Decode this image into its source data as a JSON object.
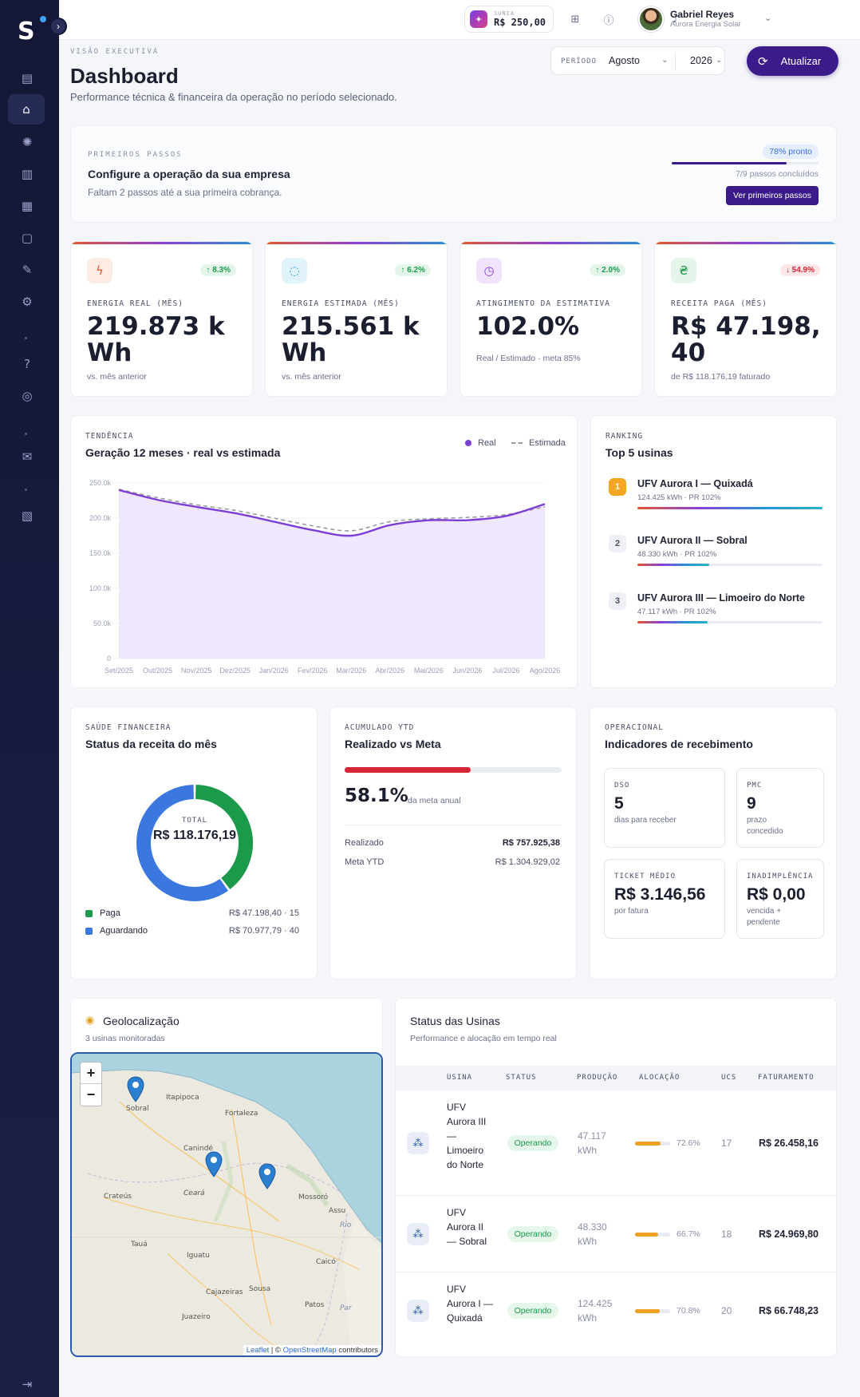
{
  "app": {
    "logo_letter": "S"
  },
  "sidebar": {
    "icons": [
      "receipt-icon",
      "home-icon",
      "sun-icon",
      "invoice-icon",
      "solar-panel-icon",
      "clipboard-icon",
      "edit-icon",
      "gear-icon",
      "help-icon",
      "support-icon",
      "mail-icon",
      "billing-icon",
      "logout-icon"
    ]
  },
  "topbar": {
    "wallet_label": "SUNIA",
    "wallet_value": "R$ 250,00",
    "user_name": "Gabriel Reyes",
    "user_company": "Aurora Energia Solar"
  },
  "header": {
    "pretitle": "VISÃO EXECUTIVA",
    "title": "Dashboard",
    "subtitle": "Performance técnica & financeira da operação no período selecionado.",
    "period_label": "PERÍODO",
    "month": "Agosto",
    "year": "2026",
    "refresh_label": "Atualizar"
  },
  "onboarding": {
    "pretitle": "PRIMEIROS PASSOS",
    "title": "Configure a operação da sua empresa",
    "subtitle": "Faltam 2 passos até a sua primeira cobrança.",
    "badge": "78% pronto",
    "progress": 0.78,
    "steps_text": "7/9 passos concluídos",
    "button": "Ver primeiros passos"
  },
  "kpis": [
    {
      "label": "ENERGIA REAL (MÊS)",
      "value": "219.873 kWh",
      "delta": "↑ 8.3%",
      "sub": "vs. mês anterior",
      "icon": "bolt-icon",
      "trend": "up"
    },
    {
      "label": "ENERGIA ESTIMADA (MÊS)",
      "value": "215.561 kWh",
      "delta": "↑ 6.2%",
      "sub": "vs. mês anterior",
      "icon": "refresh-icon",
      "trend": "up"
    },
    {
      "label": "ATINGIMENTO DA ESTIMATIVA",
      "value": "102.0%",
      "delta": "↑ 2.0%",
      "sub": "Real / Estimado · meta 85%",
      "icon": "clock-icon",
      "trend": "up"
    },
    {
      "label": "RECEITA PAGA (MÊS)",
      "value": "R$ 47.198,40",
      "delta": "↓ 54.9%",
      "sub": "de R$ 118.176,19 faturado",
      "icon": "currency-icon",
      "trend": "down"
    }
  ],
  "trend": {
    "pretitle": "TENDÊNCIA",
    "title": "Geração 12 meses · real vs estimada",
    "legend_real": "Real",
    "legend_est": "Estimada"
  },
  "chart_data": {
    "type": "area",
    "categories": [
      "Set/2025",
      "Out/2025",
      "Nov/2025",
      "Dez/2025",
      "Jan/2026",
      "Fev/2026",
      "Mar/2026",
      "Abr/2026",
      "Mai/2026",
      "Jun/2026",
      "Jul/2026",
      "Ago/2026"
    ],
    "series": [
      {
        "name": "Real",
        "values": [
          240000,
          226000,
          216000,
          207000,
          195000,
          183000,
          175000,
          190000,
          197000,
          197000,
          203000,
          220000
        ]
      },
      {
        "name": "Estimada",
        "values": [
          241000,
          229000,
          219000,
          211000,
          200000,
          189000,
          182000,
          195000,
          199000,
          201000,
          205000,
          216000
        ]
      }
    ],
    "yticks": [
      "250.0k",
      "200.0k",
      "150.0k",
      "100.0k",
      "50.0k",
      "0"
    ],
    "ylim": [
      0,
      250000
    ],
    "grid": true
  },
  "ranking": {
    "pretitle": "RANKING",
    "title": "Top 5 usinas",
    "items": [
      {
        "rank": "1",
        "name": "UFV Aurora I — Quixadá",
        "sub": "124.425 kWh · PR 102%",
        "share": 1.0
      },
      {
        "rank": "2",
        "name": "UFV Aurora II — Sobral",
        "sub": "48.330 kWh · PR 102%",
        "share": 0.39
      },
      {
        "rank": "3",
        "name": "UFV Aurora III — Limoeiro do Norte",
        "sub": "47.117 kWh · PR 102%",
        "share": 0.38
      }
    ]
  },
  "finance": {
    "pretitle": "SAÚDE FINANCEIRA",
    "title": "Status da receita do mês",
    "total_label": "TOTAL",
    "total_value": "R$ 118.176,19",
    "slices": [
      {
        "name": "Paga",
        "value": 47198.4,
        "display": "R$ 47.198,40 · 15",
        "color": "#1a9a4a"
      },
      {
        "name": "Aguardando",
        "value": 70977.79,
        "display": "R$ 70.977,79 · 40",
        "color": "#3a78e0"
      }
    ]
  },
  "ytd": {
    "pretitle": "ACUMULADO YTD",
    "title": "Realizado vs Meta",
    "progress": 0.581,
    "pct": "58.1%",
    "pct_label": "da meta anual",
    "realizado_label": "Realizado",
    "realizado_value": "R$ 757.925,38",
    "meta_label": "Meta YTD",
    "meta_value": "R$ 1.304.929,02"
  },
  "ops": {
    "pretitle": "OPERACIONAL",
    "title": "Indicadores de recebimento",
    "cards": [
      {
        "label": "DSO",
        "value": "5",
        "sub": "dias para receber"
      },
      {
        "label": "PMC",
        "value": "9",
        "sub": "prazo concedido"
      },
      {
        "label": "TICKET MÉDIO",
        "value": "R$ 3.146,56",
        "sub": "por fatura"
      },
      {
        "label": "INADIMPLÊNCIA",
        "value": "R$ 0,00",
        "sub": "vencida + pendente"
      }
    ]
  },
  "geo": {
    "title": "Geolocalização",
    "subtitle": "3 usinas monitoradas",
    "cities": [
      "Sobral",
      "Itapipoca",
      "Fortaleza",
      "Canindé",
      "Crateús",
      "Ceará",
      "Mossoró",
      "Assu",
      "Tauá",
      "Iguatu",
      "Caicó",
      "Cajazeiras",
      "Sousa",
      "Patos",
      "Juazeiro",
      "Rio",
      "Par"
    ],
    "attribution_leaflet": "Leaflet",
    "attribution_osm": "OpenStreetMap",
    "attribution_rest": "contributors",
    "zoom_in": "+",
    "zoom_out": "−"
  },
  "usinas": {
    "title": "Status das Usinas",
    "subtitle": "Performance e alocação em tempo real",
    "headers": [
      "USINA",
      "STATUS",
      "PRODUÇÃO",
      "ALOCAÇÃO",
      "UCS",
      "FATURAMENTO"
    ],
    "rows": [
      {
        "name": "UFV Aurora III — Limoeiro do Norte",
        "status": "Operando",
        "prod": "47.117 kWh",
        "alloc": 0.726,
        "alloc_text": "72.6%",
        "ucs": "17",
        "fat": "R$ 26.458,16"
      },
      {
        "name": "UFV Aurora II — Sobral",
        "status": "Operando",
        "prod": "48.330 kWh",
        "alloc": 0.667,
        "alloc_text": "66.7%",
        "ucs": "18",
        "fat": "R$ 24.969,80"
      },
      {
        "name": "UFV Aurora I — Quixadá",
        "status": "Operando",
        "prod": "124.425 kWh",
        "alloc": 0.708,
        "alloc_text": "70.8%",
        "ucs": "20",
        "fat": "R$ 66.748,23"
      }
    ]
  }
}
